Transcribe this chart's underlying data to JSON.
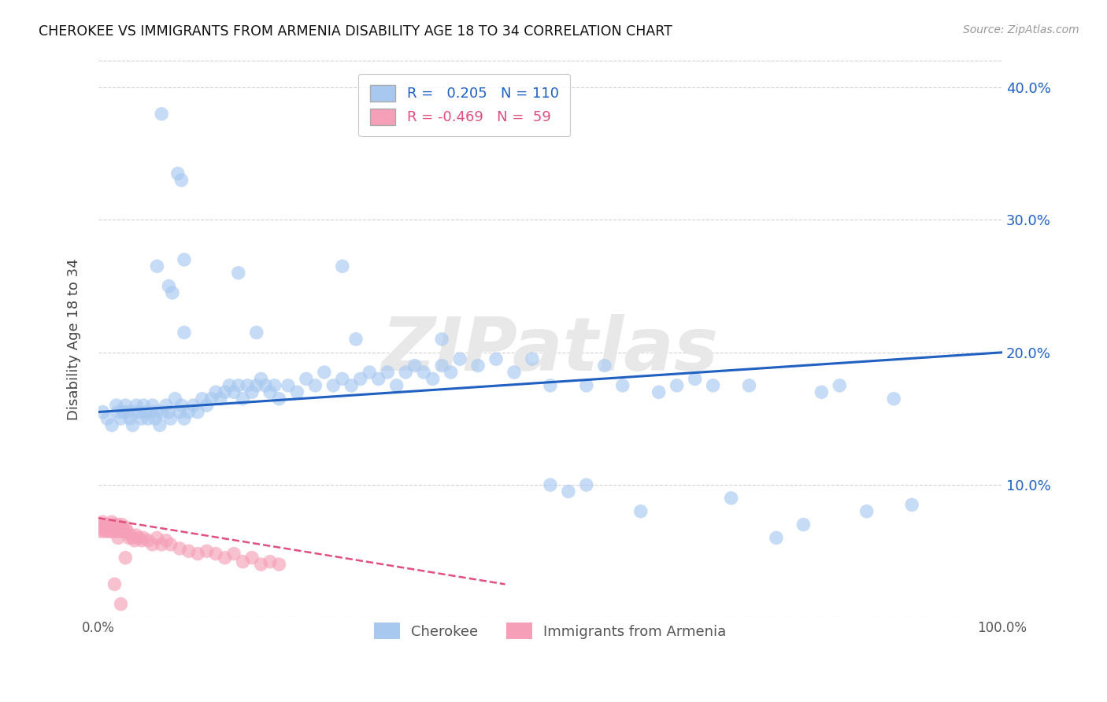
{
  "title": "CHEROKEE VS IMMIGRANTS FROM ARMENIA DISABILITY AGE 18 TO 34 CORRELATION CHART",
  "source": "Source: ZipAtlas.com",
  "ylabel": "Disability Age 18 to 34",
  "xlim": [
    0.0,
    1.0
  ],
  "ylim": [
    0.0,
    0.42
  ],
  "xticks": [
    0.0,
    0.25,
    0.5,
    0.75,
    1.0
  ],
  "xticklabels": [
    "0.0%",
    "",
    "",
    "",
    "100.0%"
  ],
  "yticks": [
    0.0,
    0.1,
    0.2,
    0.3,
    0.4
  ],
  "yticklabels_right": [
    "",
    "10.0%",
    "20.0%",
    "30.0%",
    "40.0%"
  ],
  "r_cherokee": 0.205,
  "n_cherokee": 110,
  "r_armenia": -0.469,
  "n_armenia": 59,
  "color_cherokee": "#A8C8F0",
  "color_armenia": "#F5A0B8",
  "line_color_cherokee": "#2060C0",
  "line_color_armenia": "#E05080",
  "watermark": "ZIPatlas",
  "background_color": "#FFFFFF",
  "grid_color": "#CCCCCC",
  "cherokee_x": [
    0.005,
    0.01,
    0.015,
    0.02,
    0.022,
    0.025,
    0.028,
    0.03,
    0.033,
    0.035,
    0.038,
    0.04,
    0.042,
    0.045,
    0.048,
    0.05,
    0.052,
    0.055,
    0.058,
    0.06,
    0.063,
    0.065,
    0.068,
    0.07,
    0.075,
    0.078,
    0.08,
    0.085,
    0.09,
    0.092,
    0.095,
    0.1,
    0.105,
    0.11,
    0.115,
    0.12,
    0.125,
    0.13,
    0.135,
    0.14,
    0.145,
    0.15,
    0.155,
    0.16,
    0.165,
    0.17,
    0.175,
    0.18,
    0.185,
    0.19,
    0.195,
    0.2,
    0.21,
    0.22,
    0.23,
    0.24,
    0.25,
    0.26,
    0.27,
    0.28,
    0.29,
    0.3,
    0.31,
    0.32,
    0.33,
    0.34,
    0.35,
    0.36,
    0.37,
    0.38,
    0.39,
    0.4,
    0.42,
    0.44,
    0.46,
    0.48,
    0.5,
    0.52,
    0.54,
    0.56,
    0.58,
    0.6,
    0.62,
    0.64,
    0.66,
    0.68,
    0.7,
    0.72,
    0.75,
    0.78,
    0.8,
    0.82,
    0.85,
    0.88,
    0.9,
    0.285,
    0.155,
    0.175,
    0.095,
    0.065,
    0.07,
    0.078,
    0.082,
    0.088,
    0.092,
    0.27,
    0.095,
    0.54,
    0.5,
    0.38
  ],
  "cherokee_y": [
    0.155,
    0.15,
    0.145,
    0.16,
    0.155,
    0.15,
    0.155,
    0.16,
    0.155,
    0.15,
    0.145,
    0.155,
    0.16,
    0.155,
    0.15,
    0.16,
    0.155,
    0.15,
    0.155,
    0.16,
    0.15,
    0.155,
    0.145,
    0.155,
    0.16,
    0.155,
    0.15,
    0.165,
    0.155,
    0.16,
    0.15,
    0.155,
    0.16,
    0.155,
    0.165,
    0.16,
    0.165,
    0.17,
    0.165,
    0.17,
    0.175,
    0.17,
    0.175,
    0.165,
    0.175,
    0.17,
    0.175,
    0.18,
    0.175,
    0.17,
    0.175,
    0.165,
    0.175,
    0.17,
    0.18,
    0.175,
    0.185,
    0.175,
    0.18,
    0.175,
    0.18,
    0.185,
    0.18,
    0.185,
    0.175,
    0.185,
    0.19,
    0.185,
    0.18,
    0.19,
    0.185,
    0.195,
    0.19,
    0.195,
    0.185,
    0.195,
    0.1,
    0.095,
    0.1,
    0.19,
    0.175,
    0.08,
    0.17,
    0.175,
    0.18,
    0.175,
    0.09,
    0.175,
    0.06,
    0.07,
    0.17,
    0.175,
    0.08,
    0.165,
    0.085,
    0.21,
    0.26,
    0.215,
    0.27,
    0.265,
    0.38,
    0.25,
    0.245,
    0.335,
    0.33,
    0.265,
    0.215,
    0.175,
    0.175,
    0.21
  ],
  "armenia_x": [
    0.002,
    0.003,
    0.004,
    0.005,
    0.006,
    0.007,
    0.008,
    0.009,
    0.01,
    0.011,
    0.012,
    0.013,
    0.014,
    0.015,
    0.016,
    0.017,
    0.018,
    0.019,
    0.02,
    0.021,
    0.022,
    0.023,
    0.024,
    0.025,
    0.026,
    0.027,
    0.028,
    0.03,
    0.032,
    0.034,
    0.036,
    0.038,
    0.04,
    0.042,
    0.045,
    0.048,
    0.05,
    0.055,
    0.06,
    0.065,
    0.07,
    0.075,
    0.08,
    0.09,
    0.1,
    0.11,
    0.12,
    0.13,
    0.14,
    0.15,
    0.16,
    0.17,
    0.18,
    0.19,
    0.2,
    0.025,
    0.018,
    0.022,
    0.03
  ],
  "armenia_y": [
    0.065,
    0.07,
    0.068,
    0.072,
    0.065,
    0.068,
    0.07,
    0.065,
    0.068,
    0.07,
    0.065,
    0.068,
    0.065,
    0.072,
    0.068,
    0.065,
    0.07,
    0.068,
    0.065,
    0.068,
    0.07,
    0.065,
    0.068,
    0.065,
    0.07,
    0.068,
    0.065,
    0.068,
    0.065,
    0.06,
    0.062,
    0.06,
    0.058,
    0.062,
    0.06,
    0.058,
    0.06,
    0.058,
    0.055,
    0.06,
    0.055,
    0.058,
    0.055,
    0.052,
    0.05,
    0.048,
    0.05,
    0.048,
    0.045,
    0.048,
    0.042,
    0.045,
    0.04,
    0.042,
    0.04,
    0.01,
    0.025,
    0.06,
    0.045
  ],
  "cherokee_line_x": [
    0.0,
    1.0
  ],
  "cherokee_line_y": [
    0.155,
    0.2
  ],
  "armenia_line_x": [
    0.0,
    0.45
  ],
  "armenia_line_y": [
    0.075,
    0.025
  ]
}
